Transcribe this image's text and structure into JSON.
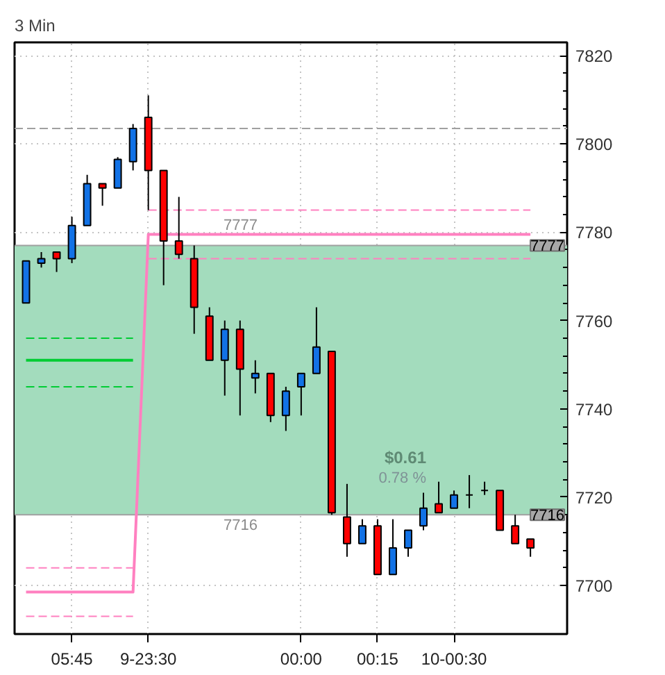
{
  "chart_data": {
    "type": "candlestick",
    "title": "3 Min",
    "categories": [
      null,
      null,
      null,
      "05:45",
      null,
      null,
      null,
      null,
      "9-23:30",
      null,
      null,
      null,
      null,
      null,
      null,
      null,
      null,
      null,
      "00:00",
      null,
      null,
      null,
      null,
      "00:15",
      null,
      null,
      null,
      null,
      "10-00:30",
      null,
      null,
      null,
      null,
      null
    ],
    "ohlc": [
      [
        7764,
        7773.5,
        7764,
        7773.5
      ],
      [
        7773,
        7775.5,
        7772,
        7774
      ],
      [
        7775.5,
        7775.5,
        7771,
        7774
      ],
      [
        7774,
        7783.5,
        7773,
        7781.5
      ],
      [
        7781.5,
        7793,
        7781.5,
        7791
      ],
      [
        7791,
        7791,
        7786,
        7790
      ],
      [
        7790,
        7797,
        7790,
        7796.5
      ],
      [
        7796,
        7804.5,
        7794,
        7803.5
      ],
      [
        7806,
        7811,
        7785,
        7794
      ],
      [
        7794,
        7794,
        7768,
        7778
      ],
      [
        7778,
        7788,
        7774,
        7775
      ],
      [
        7774,
        7777,
        7757,
        7763
      ],
      [
        7761,
        7763,
        7751,
        7751
      ],
      [
        7751,
        7760,
        7743,
        7758
      ],
      [
        7758,
        7760,
        7738.5,
        7749
      ],
      [
        7747,
        7751,
        7743.5,
        7748
      ],
      [
        7748,
        7748,
        7737,
        7738.5
      ],
      [
        7738.5,
        7745,
        7735,
        7744
      ],
      [
        7745,
        7748,
        7738.5,
        7748
      ],
      [
        7748,
        7763,
        7748,
        7754
      ],
      [
        7753,
        7753,
        7716,
        7716.5
      ],
      [
        7715.5,
        7723,
        7706.5,
        7709.5
      ],
      [
        7709.5,
        7715,
        7709.5,
        7713.5
      ],
      [
        7713.5,
        7715,
        7702.5,
        7702.5
      ],
      [
        7702.5,
        7715,
        7702.5,
        7708.5
      ],
      [
        7708.5,
        7712.5,
        7706.5,
        7712.5
      ],
      [
        7713.5,
        7721,
        7712.5,
        7717.5
      ],
      [
        7718.5,
        7723.5,
        7716.5,
        7716.5
      ],
      [
        7717.5,
        7721.5,
        7717.5,
        7720.5
      ],
      [
        7720.5,
        7725,
        7717.5,
        7720.5
      ],
      [
        7721.5,
        7723.5,
        7720.5,
        7721.5
      ],
      [
        7721.5,
        7721.5,
        7712.5,
        7712.5
      ],
      [
        7713.5,
        7716,
        7709.5,
        7709.5
      ],
      [
        7710.5,
        7710.5,
        7706.5,
        7708.5
      ]
    ],
    "colors": [
      "#1272e6",
      "#1272e6",
      "#ff0000",
      "#1272e6",
      "#1272e6",
      "#ff0000",
      "#1272e6",
      "#1272e6",
      "#ff0000",
      "#ff0000",
      "#ff0000",
      "#ff0000",
      "#ff0000",
      "#1272e6",
      "#ff0000",
      "#1272e6",
      "#ff0000",
      "#1272e6",
      "#1272e6",
      "#1272e6",
      "#ff0000",
      "#ff0000",
      "#1272e6",
      "#ff0000",
      "#1272e6",
      "#1272e6",
      "#1272e6",
      "#ff0000",
      "#1272e6",
      "#000000",
      "#000000",
      "#ff0000",
      "#ff0000",
      "#ff0000"
    ],
    "series": [
      {
        "type": "line",
        "color": "#00cc33",
        "line_style": "solid",
        "values": [
          7751,
          7751,
          7751,
          7751,
          7751,
          7751,
          7751,
          7751,
          null,
          null,
          null,
          null,
          null,
          null,
          null,
          null,
          null,
          null,
          null,
          null,
          null,
          null,
          null,
          null,
          null,
          null,
          null,
          null,
          null,
          null,
          null,
          null,
          null,
          null
        ]
      },
      {
        "type": "line",
        "color": "#00cc33",
        "line_style": "dashed",
        "values": [
          7756,
          7756,
          7756,
          7756,
          7756,
          7756,
          7756,
          7756,
          null,
          null,
          null,
          null,
          null,
          null,
          null,
          null,
          null,
          null,
          null,
          null,
          null,
          null,
          null,
          null,
          null,
          null,
          null,
          null,
          null,
          null,
          null,
          null,
          null,
          null
        ]
      },
      {
        "type": "line",
        "color": "#00cc33",
        "line_style": "dashed",
        "values": [
          7745,
          7745,
          7745,
          7745,
          7745,
          7745,
          7745,
          7745,
          null,
          null,
          null,
          null,
          null,
          null,
          null,
          null,
          null,
          null,
          null,
          null,
          null,
          null,
          null,
          null,
          null,
          null,
          null,
          null,
          null,
          null,
          null,
          null,
          null,
          null
        ]
      },
      {
        "type": "line",
        "color": "#ff80c0",
        "line_style": "solid",
        "values": [
          7698.5,
          7698.5,
          7698.5,
          7698.5,
          7698.5,
          7698.5,
          7698.5,
          7698.5,
          7779.5,
          7779.5,
          7779.5,
          7779.5,
          7779.5,
          7779.5,
          7779.5,
          7779.5,
          7779.5,
          7779.5,
          7779.5,
          7779.5,
          7779.5,
          7779.5,
          7779.5,
          7779.5,
          7779.5,
          7779.5,
          7779.5,
          7779.5,
          7779.5,
          7779.5,
          7779.5,
          7779.5,
          7779.5,
          7779.5
        ]
      },
      {
        "type": "line",
        "color": "#ff80c0",
        "line_style": "dashed",
        "values": [
          7704,
          7704,
          7704,
          7704,
          7704,
          7704,
          7704,
          7704,
          null,
          null,
          null,
          null,
          null,
          null,
          null,
          null,
          null,
          null,
          null,
          null,
          null,
          null,
          null,
          null,
          null,
          null,
          null,
          null,
          null,
          null,
          null,
          null,
          null,
          null
        ]
      },
      {
        "type": "line",
        "color": "#ff80c0",
        "line_style": "dashed",
        "values": [
          7693,
          7693,
          7693,
          7693,
          7693,
          7693,
          7693,
          7693,
          null,
          null,
          null,
          null,
          null,
          null,
          null,
          null,
          null,
          null,
          null,
          null,
          null,
          null,
          null,
          null,
          null,
          null,
          null,
          null,
          null,
          null,
          null,
          null,
          null,
          null
        ]
      },
      {
        "type": "line",
        "color": "#ff80c0",
        "line_style": "dashed",
        "values": [
          null,
          null,
          null,
          null,
          null,
          null,
          null,
          null,
          7785,
          7785,
          7785,
          7785,
          7785,
          7785,
          7785,
          7785,
          7785,
          7785,
          7785,
          7785,
          7785,
          7785,
          7785,
          7785,
          7785,
          7785,
          7785,
          7785,
          7785,
          7785,
          7785,
          7785,
          7785,
          7785
        ]
      },
      {
        "type": "line",
        "color": "#ff80c0",
        "line_style": "dashed",
        "values": [
          null,
          null,
          null,
          null,
          null,
          null,
          null,
          null,
          7774,
          7774,
          7774,
          7774,
          7774,
          7774,
          7774,
          7774,
          7774,
          7774,
          7774,
          7774,
          7774,
          7774,
          7774,
          7774,
          7774,
          7774,
          7774,
          7774,
          7774,
          7774,
          7774,
          7774,
          7774,
          7774
        ]
      }
    ],
    "bands": [
      {
        "axis": "y",
        "from": 7716,
        "to": 7777,
        "color": "#a3dcbd"
      }
    ],
    "ref_lines": [
      {
        "axis": "y",
        "value": 7803.5,
        "color": "#a0a0a0",
        "line_style": "dashed"
      },
      {
        "axis": "y",
        "value": 7777,
        "label": "7777",
        "color": "#a0a0a0",
        "line_style": "solid"
      },
      {
        "axis": "y",
        "value": 7716,
        "label": "7716",
        "color": "#a0a0a0",
        "line_style": "solid"
      }
    ],
    "annotations": [
      {
        "text": "7777",
        "y": 7777
      },
      {
        "text": "7716",
        "y": 7716
      },
      "$0.61",
      "0.78 %"
    ],
    "ylim": [
      7689,
      7823
    ],
    "yticks": [
      7700,
      7720,
      7740,
      7760,
      7780,
      7800,
      7820
    ],
    "grid": true
  }
}
